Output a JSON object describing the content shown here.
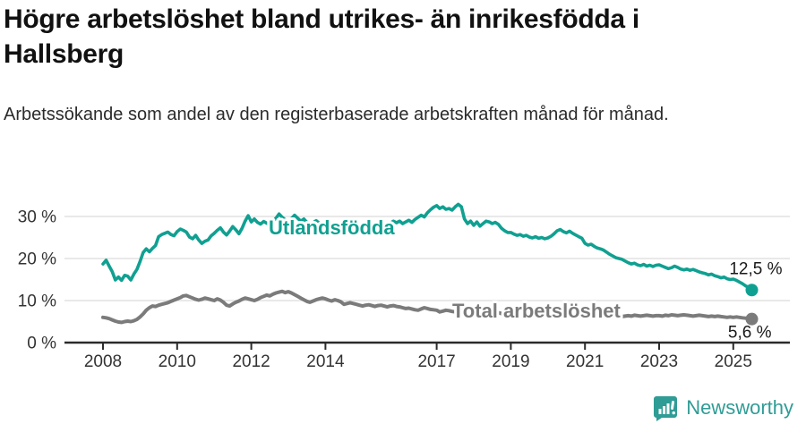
{
  "title": "Högre arbetslöshet bland utrikes- än inrikesfödda i Hallsberg",
  "subtitle": "Arbetssökande som andel av den registerbaserade arbetskraften månad för månad.",
  "footer": {
    "brand": "Newsworthy",
    "logo_icon": "newsworthy-speech-bubble-bar-chart-icon"
  },
  "colors": {
    "foreign_born_line": "#10a091",
    "total_line": "#7b7b7b",
    "grid": "#dcdcdc",
    "axis": "#2b2b2b",
    "tick_text": "#333333",
    "value_label_text": "#1a1a1a",
    "brand_teal": "#2f9c95",
    "background": "#ffffff"
  },
  "chart_data": {
    "type": "line",
    "title": "Högre arbetslöshet bland utrikes- än inrikesfödda i Hallsberg",
    "subtitle": "Arbetssökande som andel av den registerbaserade arbetskraften månad för månad.",
    "x_frequency": "monthly",
    "x_start": "2008-01",
    "x_end": "2025-07",
    "x_tick_years": [
      2008,
      2010,
      2012,
      2014,
      2017,
      2019,
      2021,
      2023,
      2025
    ],
    "x_tick_labels": [
      "2008",
      "2010",
      "2012",
      "2014",
      "2017",
      "2019",
      "2021",
      "2023",
      "2025"
    ],
    "y_ticks": [
      0,
      10,
      20,
      30
    ],
    "y_tick_labels": [
      "0 %",
      "10 %",
      "20 %",
      "30 %"
    ],
    "ylim": [
      0,
      36
    ],
    "grid": "horizontal",
    "legend_position": "inline-labels",
    "series": [
      {
        "name": "Utlandsfödda",
        "color": "#10a091",
        "end_label": "12,5 %",
        "end_value": 12.5,
        "values": [
          18.7,
          19.6,
          18.2,
          16.9,
          14.9,
          15.6,
          14.8,
          16.0,
          15.8,
          14.9,
          16.3,
          17.4,
          19.3,
          21.4,
          22.3,
          21.6,
          22.4,
          23.1,
          25.2,
          25.7,
          26.0,
          26.3,
          25.7,
          25.4,
          26.4,
          27.0,
          26.7,
          26.3,
          25.1,
          24.7,
          25.5,
          24.4,
          23.6,
          24.1,
          24.4,
          25.4,
          26.0,
          26.7,
          27.3,
          26.3,
          25.6,
          26.5,
          27.6,
          26.8,
          25.9,
          27.2,
          28.9,
          30.2,
          28.7,
          29.4,
          28.6,
          28.2,
          28.8,
          28.4,
          28.0,
          28.8,
          29.6,
          30.6,
          29.8,
          29.2,
          28.8,
          29.5,
          30.3,
          29.6,
          28.9,
          29.4,
          28.6,
          28.0,
          28.5,
          29.0,
          28.4,
          27.9,
          28.3,
          28.8,
          28.2,
          27.7,
          28.1,
          27.6,
          27.2,
          27.8,
          28.3,
          27.9,
          27.5,
          27.9,
          28.2,
          27.8,
          28.4,
          28.0,
          27.6,
          28.1,
          28.7,
          28.2,
          27.9,
          28.4,
          28.9,
          28.5,
          28.9,
          28.3,
          28.7,
          29.1,
          28.6,
          29.3,
          29.8,
          30.3,
          29.9,
          30.9,
          31.6,
          32.2,
          32.6,
          31.9,
          32.3,
          31.7,
          31.9,
          31.5,
          32.3,
          32.9,
          32.3,
          29.4,
          28.3,
          28.9,
          27.9,
          28.7,
          27.7,
          28.3,
          28.9,
          28.7,
          28.3,
          28.6,
          28.1,
          27.2,
          26.6,
          26.2,
          26.2,
          25.8,
          25.5,
          25.7,
          25.3,
          25.5,
          25.1,
          24.9,
          25.2,
          24.8,
          25.0,
          24.7,
          24.9,
          25.3,
          25.9,
          26.6,
          26.9,
          26.4,
          26.1,
          26.5,
          26.0,
          25.6,
          25.2,
          24.8,
          23.6,
          23.2,
          23.4,
          22.9,
          22.5,
          22.3,
          22.0,
          21.5,
          21.0,
          20.6,
          20.2,
          20.0,
          19.8,
          19.4,
          19.0,
          18.7,
          18.9,
          18.5,
          18.3,
          18.6,
          18.2,
          18.4,
          18.1,
          18.4,
          18.5,
          18.2,
          17.9,
          17.6,
          17.8,
          18.2,
          17.9,
          17.5,
          17.3,
          17.5,
          17.2,
          17.4,
          17.1,
          16.8,
          16.6,
          16.4,
          16.1,
          16.3,
          15.9,
          15.7,
          15.4,
          15.6,
          15.2,
          15.0,
          15.1,
          14.8,
          14.4,
          14.0,
          13.5,
          13.1,
          12.5
        ]
      },
      {
        "name": "Total arbetslöshet",
        "color": "#7b7b7b",
        "end_label": "5,6 %",
        "end_value": 5.6,
        "values": [
          6.0,
          5.9,
          5.7,
          5.4,
          5.1,
          4.9,
          4.8,
          5.0,
          5.1,
          5.0,
          5.2,
          5.5,
          6.1,
          6.8,
          7.7,
          8.3,
          8.7,
          8.6,
          8.9,
          9.1,
          9.3,
          9.5,
          9.8,
          10.1,
          10.4,
          10.7,
          11.1,
          11.2,
          10.9,
          10.6,
          10.3,
          10.1,
          10.3,
          10.6,
          10.4,
          10.2,
          10.0,
          10.4,
          10.1,
          9.6,
          8.9,
          8.7,
          9.2,
          9.6,
          9.9,
          10.3,
          10.6,
          10.4,
          10.2,
          10.0,
          10.3,
          10.7,
          11.0,
          11.3,
          11.1,
          11.5,
          11.8,
          12.0,
          12.2,
          11.9,
          12.1,
          11.8,
          11.4,
          11.0,
          10.6,
          10.2,
          9.8,
          9.6,
          9.9,
          10.2,
          10.4,
          10.6,
          10.4,
          10.1,
          9.9,
          10.2,
          10.0,
          9.7,
          9.1,
          9.3,
          9.5,
          9.3,
          9.1,
          8.9,
          8.7,
          8.9,
          9.0,
          8.8,
          8.6,
          8.8,
          8.9,
          8.7,
          8.5,
          8.7,
          8.8,
          8.6,
          8.5,
          8.3,
          8.1,
          8.2,
          8.0,
          7.8,
          7.7,
          8.0,
          8.3,
          8.1,
          7.9,
          7.8,
          7.7,
          7.3,
          7.5,
          7.7,
          7.6,
          7.4,
          7.3,
          7.5,
          7.6,
          7.4,
          7.2,
          7.3,
          7.2,
          7.0,
          7.1,
          7.3,
          7.1,
          6.9,
          6.8,
          7.0,
          7.1,
          6.9,
          6.8,
          6.7,
          6.8,
          6.6,
          6.7,
          6.8,
          6.6,
          6.5,
          6.6,
          6.7,
          6.8,
          6.6,
          6.7,
          6.8,
          7.0,
          7.2,
          7.6,
          7.9,
          8.1,
          7.9,
          7.7,
          7.5,
          7.3,
          7.1,
          7.0,
          6.9,
          6.8,
          6.9,
          6.7,
          6.5,
          6.4,
          6.3,
          6.2,
          6.1,
          6.2,
          6.3,
          6.2,
          6.1,
          6.2,
          6.3,
          6.4,
          6.3,
          6.5,
          6.4,
          6.3,
          6.4,
          6.5,
          6.4,
          6.3,
          6.4,
          6.4,
          6.3,
          6.5,
          6.4,
          6.6,
          6.5,
          6.4,
          6.5,
          6.6,
          6.5,
          6.4,
          6.3,
          6.4,
          6.5,
          6.4,
          6.3,
          6.2,
          6.3,
          6.2,
          6.3,
          6.2,
          6.1,
          6.0,
          6.1,
          6.0,
          6.1,
          6.0,
          5.9,
          5.8,
          5.7,
          5.6
        ]
      }
    ]
  }
}
